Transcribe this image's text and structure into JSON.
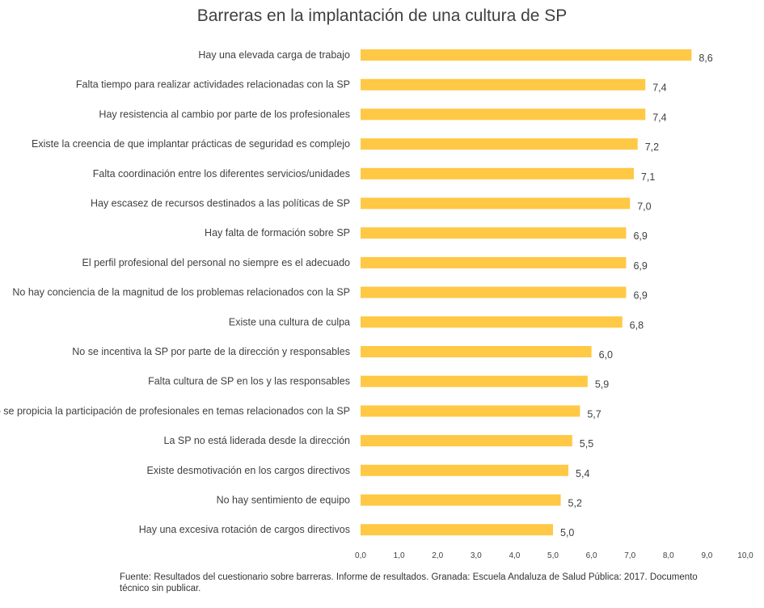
{
  "chart_data": {
    "type": "bar",
    "orientation": "horizontal",
    "title": "Barreras en la implantación de una cultura de SP",
    "categories": [
      "Hay una elevada carga de trabajo",
      "Falta tiempo para realizar actividades relacionadas con la SP",
      "Hay resistencia al cambio por parte de los profesionales",
      "Existe la creencia de que implantar prácticas de seguridad es complejo",
      "Falta coordinación entre los diferentes servicios/unidades",
      "Hay escasez de recursos destinados a las políticas de SP",
      "Hay falta de formación sobre SP",
      "El perfil profesional del personal no siempre es el adecuado",
      "No hay conciencia de la magnitud de los problemas relacionados con la SP",
      "Existe una cultura de culpa",
      "No se incentiva la SP por parte de la dirección y responsables",
      "Falta cultura de SP en los y las responsables",
      "No se propicia la participación de profesionales en temas relacionados con la SP",
      "La SP no está liderada desde la dirección",
      "Existe desmotivación en los cargos directivos",
      "No hay sentimiento de equipo",
      "Hay una excesiva rotación de cargos directivos"
    ],
    "values": [
      8.6,
      7.4,
      7.4,
      7.2,
      7.1,
      7.0,
      6.9,
      6.9,
      6.9,
      6.8,
      6.0,
      5.9,
      5.7,
      5.5,
      5.4,
      5.2,
      5.0
    ],
    "value_labels": [
      "8,6",
      "7,4",
      "7,4",
      "7,2",
      "7,1",
      "7,0",
      "6,9",
      "6,9",
      "6,9",
      "6,8",
      "6,0",
      "5,9",
      "5,7",
      "5,5",
      "5,4",
      "5,2",
      "5,0"
    ],
    "xlim": [
      0,
      10
    ],
    "xticks": [
      "0,0",
      "1,0",
      "2,0",
      "3,0",
      "4,0",
      "5,0",
      "6,0",
      "7,0",
      "8,0",
      "9,0",
      "10,0"
    ],
    "bar_color": "#FFC845",
    "grid": false,
    "source": "Fuente: Resultados del cuestionario sobre barreras. Informe de resultados. Granada: Escuela Andaluza de Salud Pública: 2017. Documento técnico sin publicar."
  }
}
